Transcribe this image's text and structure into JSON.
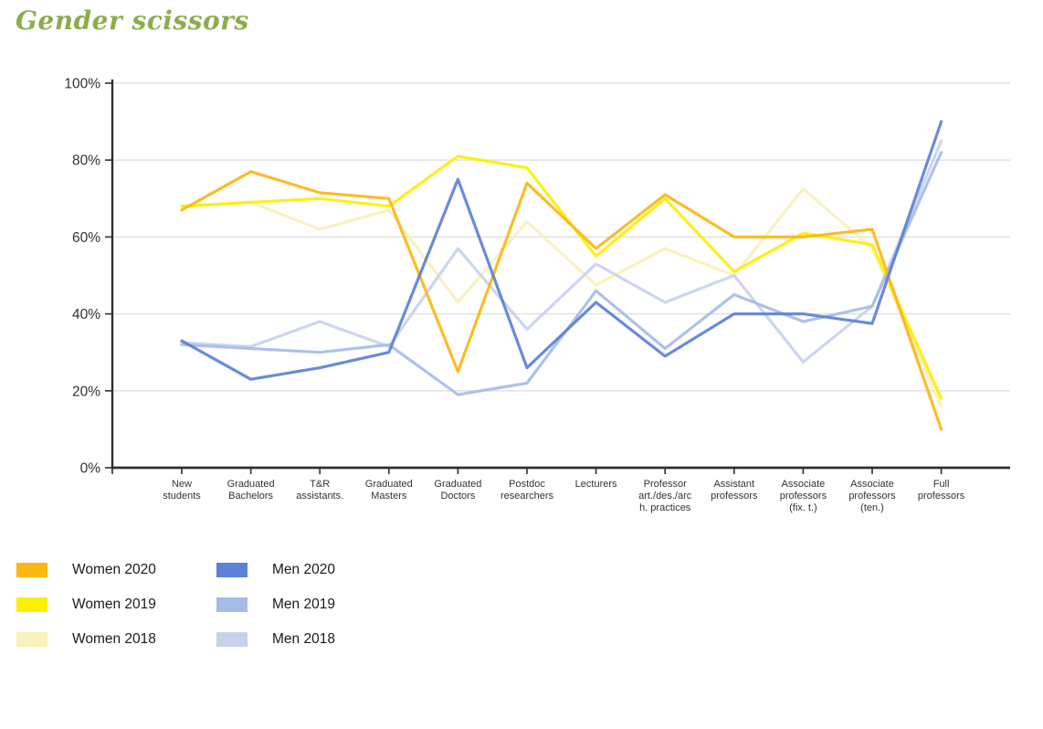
{
  "page": {
    "title": "Gender scissors"
  },
  "colors": {
    "title": "#8BAD4B",
    "axis": "#2F2F2F",
    "grid": "#DFDFDF",
    "tick_label": "#333333",
    "legend_label": "#1A1A1A"
  },
  "chart_data": {
    "type": "line",
    "title": "Gender scissors",
    "grid": true,
    "legend_position": "bottom-left",
    "categories": [
      "New students",
      "Graduated Bachelors",
      "T&R assistants.",
      "Graduated Masters",
      "Graduated Doctors",
      "Postdoc researchers",
      "Lecturers",
      "Professor art./des./arch. practices",
      "Assistant professors",
      "Associate professors (fix. t.)",
      "Associate professors (ten.)",
      "Full professors"
    ],
    "category_label_lines": [
      [
        "New",
        "students"
      ],
      [
        "Graduated",
        "Bachelors"
      ],
      [
        "T&R",
        "assistants."
      ],
      [
        "Graduated",
        "Masters"
      ],
      [
        "Graduated",
        "Doctors"
      ],
      [
        "Postdoc",
        "researchers"
      ],
      [
        "Lecturers"
      ],
      [
        "Professor",
        "art./des./arc",
        "h. practices"
      ],
      [
        "Assistant",
        "professors"
      ],
      [
        "Associate",
        "professors",
        "(fix. t.)"
      ],
      [
        "Associate",
        "professors",
        "(ten.)"
      ],
      [
        "Full",
        "professors"
      ]
    ],
    "y_axis": {
      "min": 0,
      "max": 100,
      "ticks": [
        {
          "value": 0,
          "label": "0%"
        },
        {
          "value": 20,
          "label": "20%"
        },
        {
          "value": 40,
          "label": "40%"
        },
        {
          "value": 60,
          "label": "60%"
        },
        {
          "value": 80,
          "label": "80%"
        },
        {
          "value": 100,
          "label": "100%"
        }
      ]
    },
    "series": [
      {
        "name": "Women 2020",
        "color": "#FBB713",
        "values": [
          67,
          77,
          71.5,
          70,
          25,
          74,
          57,
          71,
          60,
          60,
          62,
          10
        ]
      },
      {
        "name": "Women 2019",
        "color": "#FCEF04",
        "values": [
          68,
          69,
          70,
          68,
          81,
          78,
          55,
          70,
          51,
          61,
          58,
          18
        ]
      },
      {
        "name": "Women 2018",
        "color": "#F7F1BC",
        "values": [
          68,
          69,
          62,
          67,
          43,
          64,
          47.5,
          57,
          50,
          72.5,
          57,
          16
        ]
      },
      {
        "name": "Men 2020",
        "color": "#5C81D6",
        "values": [
          33,
          23,
          26,
          30,
          75,
          26,
          43,
          29,
          40,
          40,
          37.5,
          90
        ]
      },
      {
        "name": "Men 2019",
        "color": "#A6BCE8",
        "values": [
          32,
          31,
          30,
          32,
          19,
          22,
          46,
          31,
          45,
          38,
          42,
          82
        ]
      },
      {
        "name": "Men 2018",
        "color": "#C9D2ED",
        "values": [
          32.5,
          31.5,
          38,
          31.5,
          57,
          36,
          53,
          43,
          50,
          27.5,
          42,
          85
        ]
      }
    ]
  }
}
